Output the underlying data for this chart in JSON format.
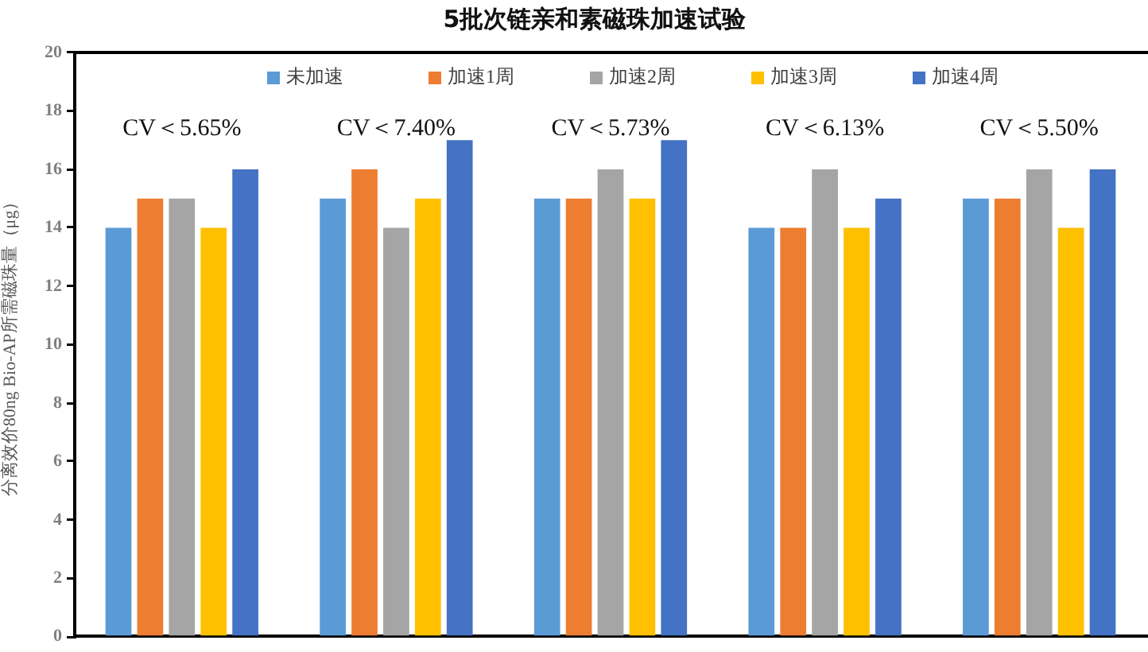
{
  "chart_data": {
    "type": "bar",
    "title": "5批次链亲和素磁珠加速试验",
    "ylabel": "分离效价80ng Bio-AP所需磁珠量（μg）",
    "categories": [
      null,
      null,
      null,
      null,
      null
    ],
    "series": [
      {
        "name": "未加速",
        "color": "#5b9bd5",
        "values": [
          14,
          15,
          15,
          14,
          15
        ]
      },
      {
        "name": "加速1周",
        "color": "#ed7d31",
        "values": [
          15,
          16,
          15,
          14,
          15
        ]
      },
      {
        "name": "加速2周",
        "color": "#a5a5a5",
        "values": [
          15,
          14,
          16,
          16,
          16
        ]
      },
      {
        "name": "加速3周",
        "color": "#ffc000",
        "values": [
          14,
          15,
          15,
          14,
          14
        ]
      },
      {
        "name": "加速4周",
        "color": "#4472c4",
        "values": [
          16,
          17,
          17,
          15,
          16
        ]
      }
    ],
    "ylim": [
      0,
      20
    ],
    "yticks": [
      0,
      2,
      4,
      6,
      8,
      10,
      12,
      14,
      16,
      18,
      20
    ],
    "legend": "top",
    "tick_labels": "y",
    "annotations": [
      "CV＜5.65%",
      "CV＜7.40%",
      "CV＜5.73%",
      "CV＜6.13%",
      "CV＜5.50%"
    ]
  }
}
